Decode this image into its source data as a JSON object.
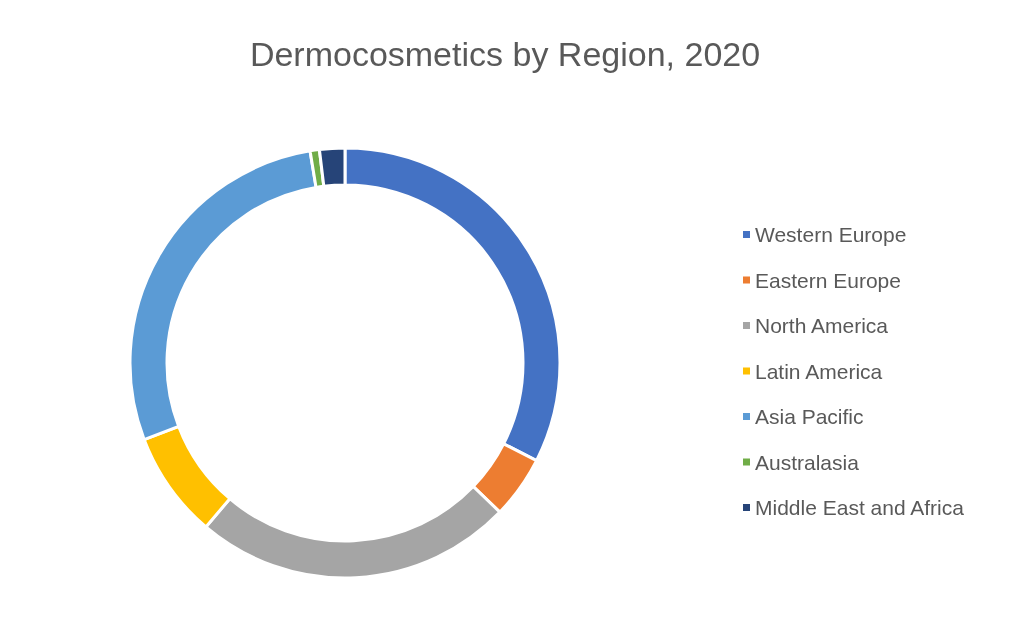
{
  "chart_data": {
    "type": "donut",
    "title": "Dermocosmetics by Region, 2020",
    "categories": [
      "Western Europe",
      "Eastern Europe",
      "North America",
      "Latin America",
      "Asia Pacific",
      "Australasia",
      "Middle East and Africa"
    ],
    "values": [
      32.5,
      4.7,
      24,
      8,
      28.2,
      0.7,
      1.9
    ],
    "colors": [
      "#4472c4",
      "#ed7d31",
      "#a5a5a5",
      "#ffc000",
      "#5b9bd5",
      "#70ad47",
      "#264478"
    ],
    "legend": "right"
  }
}
